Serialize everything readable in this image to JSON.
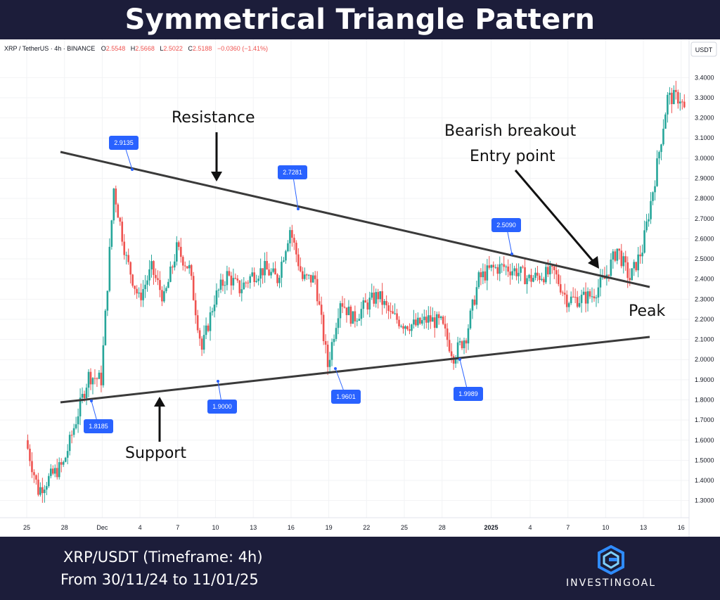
{
  "title": "Symmetrical Triangle Pattern",
  "ticker_line": {
    "symbol": "XRP / TetherUS · 4h · BINANCE",
    "open_label": "O",
    "open": "2.5548",
    "high_label": "H",
    "high": "2.5668",
    "low_label": "L",
    "low": "2.5022",
    "close_label": "C",
    "close": "2.5188",
    "change": "−0.0360 (−1.41%)"
  },
  "currency": "USDT",
  "footer": {
    "line1": "XRP/USDT (Timeframe: 4h)",
    "line2": "From 30/11/24 to 11/01/25",
    "brand": "INVESTINGOAL"
  },
  "colors": {
    "up": "#26a69a",
    "down": "#ef5350",
    "label_bg": "#2962ff",
    "trendline": "#3a3a3a",
    "background": "#1c1d3a"
  },
  "chart_data": {
    "type": "candlestick",
    "timeframe": "4h",
    "x_ticks": [
      "25",
      "28",
      "Dec",
      "4",
      "7",
      "10",
      "13",
      "16",
      "19",
      "22",
      "25",
      "28",
      "2025",
      "4",
      "7",
      "10",
      "13",
      "16"
    ],
    "y_ticks": [
      "3.4000",
      "3.3000",
      "3.2000",
      "3.1000",
      "3.0000",
      "2.9000",
      "2.8000",
      "2.7000",
      "2.6000",
      "2.5000",
      "2.4000",
      "2.3000",
      "2.2000",
      "2.1000",
      "2.0000",
      "1.9000",
      "1.8000",
      "1.7000",
      "1.6000",
      "1.5000",
      "1.4000",
      "1.3000"
    ],
    "ylim": [
      1.25,
      3.45
    ],
    "price_path": [
      [
        "25",
        1.6
      ],
      [
        "26",
        1.35
      ],
      [
        "27",
        1.42
      ],
      [
        "28",
        1.48
      ],
      [
        "29",
        1.7
      ],
      [
        "Dec",
        1.92
      ],
      [
        "2",
        1.9
      ],
      [
        "3",
        2.85
      ],
      [
        "4",
        2.5
      ],
      [
        "5",
        2.3
      ],
      [
        "6",
        2.45
      ],
      [
        "7",
        2.3
      ],
      [
        "8",
        2.55
      ],
      [
        "9",
        2.45
      ],
      [
        "10",
        2.05
      ],
      [
        "11",
        2.3
      ],
      [
        "12",
        2.42
      ],
      [
        "13",
        2.35
      ],
      [
        "14",
        2.42
      ],
      [
        "15",
        2.45
      ],
      [
        "16",
        2.4
      ],
      [
        "17",
        2.65
      ],
      [
        "18",
        2.4
      ],
      [
        "19",
        2.4
      ],
      [
        "20",
        1.97
      ],
      [
        "21",
        2.3
      ],
      [
        "22",
        2.2
      ],
      [
        "23",
        2.27
      ],
      [
        "24",
        2.32
      ],
      [
        "25",
        2.22
      ],
      [
        "26",
        2.18
      ],
      [
        "27",
        2.17
      ],
      [
        "28",
        2.2
      ],
      [
        "29",
        2.18
      ],
      [
        "30",
        2.02
      ],
      [
        "31",
        2.12
      ],
      [
        "2025",
        2.4
      ],
      [
        "2",
        2.45
      ],
      [
        "3",
        2.46
      ],
      [
        "4",
        2.44
      ],
      [
        "5",
        2.4
      ],
      [
        "6",
        2.42
      ],
      [
        "7",
        2.43
      ],
      [
        "8",
        2.3
      ],
      [
        "9",
        2.3
      ],
      [
        "10",
        2.32
      ],
      [
        "11",
        2.4
      ],
      [
        "12",
        2.55
      ],
      [
        "13",
        2.4
      ],
      [
        "14",
        2.55
      ],
      [
        "15",
        2.9
      ],
      [
        "16",
        3.3
      ],
      [
        "17",
        3.3
      ],
      [
        "18",
        3.12
      ]
    ],
    "markers": [
      {
        "value": "1.8185",
        "date": "Nov 29"
      },
      {
        "value": "2.9135",
        "date": "Dec 3"
      },
      {
        "value": "1.9000",
        "date": "Dec 10"
      },
      {
        "value": "2.7281",
        "date": "Dec 17"
      },
      {
        "value": "1.9601",
        "date": "Dec 20"
      },
      {
        "value": "1.9989",
        "date": "Dec 30"
      },
      {
        "value": "2.5090",
        "date": "Jan 3"
      }
    ],
    "trendlines": [
      {
        "name": "resistance",
        "from": [
          "Nov 28",
          3.0
        ],
        "to": [
          "Jan 19",
          2.35
        ]
      },
      {
        "name": "support",
        "from": [
          "Nov 28",
          1.81
        ],
        "to": [
          "Jan 19",
          2.11
        ]
      }
    ],
    "annotations": [
      "Resistance",
      "Support",
      "Bearish breakout",
      "Entry point",
      "Peak"
    ]
  }
}
